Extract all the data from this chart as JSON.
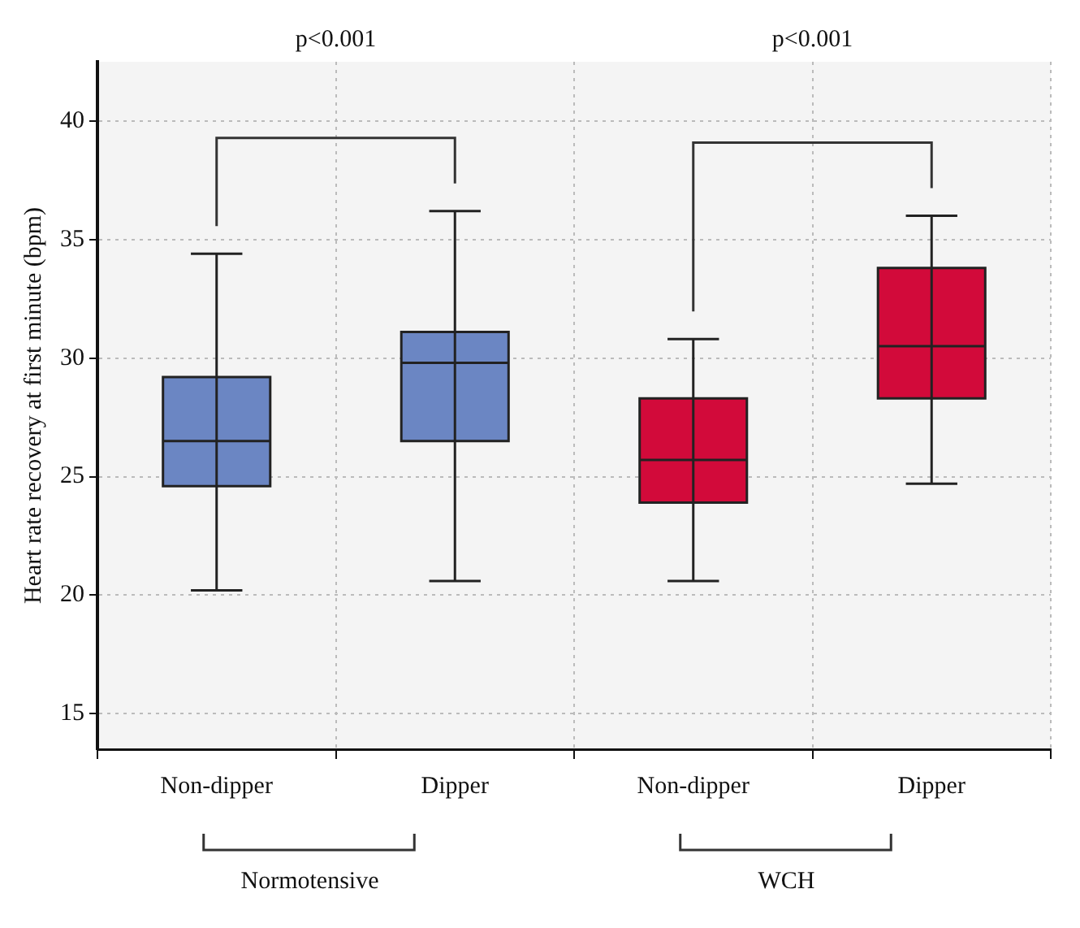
{
  "chart_data": {
    "type": "box",
    "ylabel": "Heart rate recovery at first minute (bpm)",
    "categories": [
      "Non-dipper",
      "Dipper",
      "Non-dipper",
      "Dipper"
    ],
    "colors": [
      "#6b86c3",
      "#6b86c3",
      "#d20a3a",
      "#d20a3a"
    ],
    "boxes": [
      {
        "low": 20.2,
        "q1": 24.6,
        "median": 26.5,
        "q3": 29.2,
        "high": 34.4
      },
      {
        "low": 20.6,
        "q1": 26.5,
        "median": 29.8,
        "q3": 31.1,
        "high": 36.2
      },
      {
        "low": 20.6,
        "q1": 23.9,
        "median": 25.7,
        "q3": 28.3,
        "high": 30.8
      },
      {
        "low": 24.7,
        "q1": 28.3,
        "median": 30.5,
        "q3": 33.8,
        "high": 36.0
      }
    ],
    "ylim": [
      13.5,
      42.5
    ],
    "yticks": [
      15,
      20,
      25,
      30,
      35,
      40
    ],
    "grid": true,
    "annotations": [
      "p<0.001",
      "p<0.001",
      "Normotensive",
      "WCH"
    ]
  }
}
